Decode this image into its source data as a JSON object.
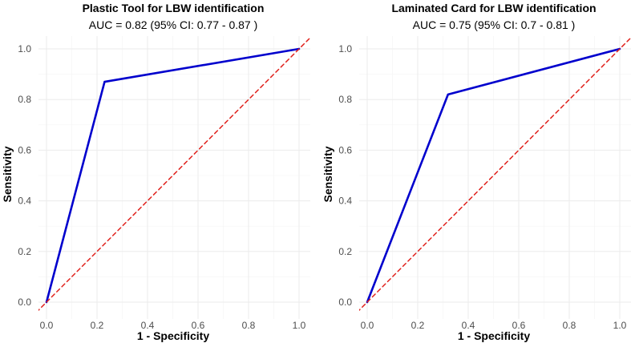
{
  "chart_data": [
    {
      "type": "line",
      "title": "Plastic Tool for LBW identification",
      "subtitle": "AUC = 0.82  (95% CI:  0.77 - 0.87 )",
      "xlabel": "1 - Specificity",
      "ylabel": "Sensitivity",
      "xlim": [
        0,
        1
      ],
      "ylim": [
        0,
        1
      ],
      "x_ticks": [
        "0.0",
        "0.2",
        "0.4",
        "0.6",
        "0.8",
        "1.0"
      ],
      "y_ticks": [
        "0.0",
        "0.2",
        "0.4",
        "0.6",
        "0.8",
        "1.0"
      ],
      "grid": true,
      "series": [
        {
          "name": "ROC curve",
          "color": "#0000cd",
          "style": "solid",
          "x": [
            0,
            0.23,
            1
          ],
          "y": [
            0,
            0.87,
            1
          ]
        },
        {
          "name": "Reference line",
          "color": "#e0201b",
          "style": "dashed",
          "x": [
            -0.04,
            1.04
          ],
          "y": [
            -0.04,
            1.04
          ]
        }
      ]
    },
    {
      "type": "line",
      "title": "Laminated Card for LBW identification",
      "subtitle": "AUC = 0.75  (95% CI:  0.7 - 0.81 )",
      "xlabel": "1 - Specificity",
      "ylabel": "Sensitivity",
      "xlim": [
        0,
        1
      ],
      "ylim": [
        0,
        1
      ],
      "x_ticks": [
        "0.0",
        "0.2",
        "0.4",
        "0.6",
        "0.8",
        "1.0"
      ],
      "y_ticks": [
        "0.0",
        "0.2",
        "0.4",
        "0.6",
        "0.8",
        "1.0"
      ],
      "grid": true,
      "series": [
        {
          "name": "ROC curve",
          "color": "#0000cd",
          "style": "solid",
          "x": [
            0,
            0.32,
            1
          ],
          "y": [
            0,
            0.82,
            1
          ]
        },
        {
          "name": "Reference line",
          "color": "#e0201b",
          "style": "dashed",
          "x": [
            -0.04,
            1.04
          ],
          "y": [
            -0.04,
            1.04
          ]
        }
      ]
    }
  ]
}
